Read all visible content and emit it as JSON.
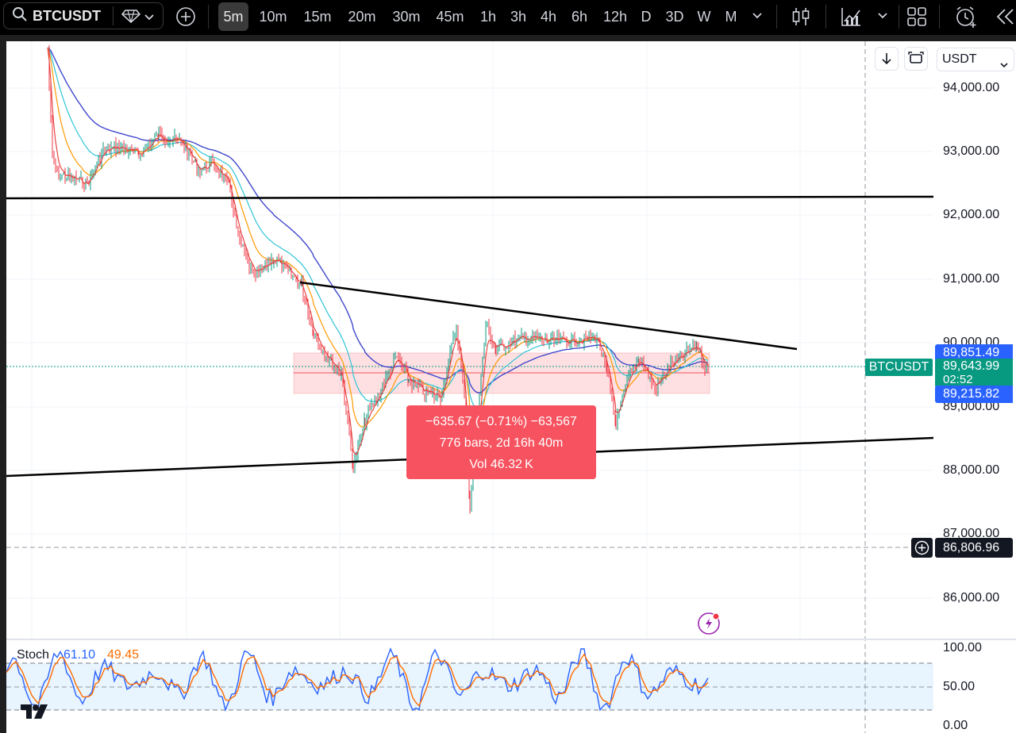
{
  "toolbar": {
    "symbol": "BTCUSDT",
    "timeframes": [
      "5m",
      "10m",
      "15m",
      "20m",
      "30m",
      "45m",
      "1h",
      "3h",
      "4h",
      "6h",
      "12h",
      "D",
      "3D",
      "W",
      "M"
    ],
    "active_timeframe": "5m"
  },
  "chart": {
    "currency": "USDT",
    "price_axis": [
      "94,000.00",
      "93,000.00",
      "92,000.00",
      "91,000.00",
      "90,000.00",
      "89,000.00",
      "88,000.00",
      "87,000.00",
      "86,000.00"
    ],
    "symbol_tag": "BTCUSDT",
    "price_tags": {
      "upper": "89,851.49",
      "last": "89,643.99",
      "countdown": "02:52",
      "lower": "89,215.82",
      "crosshair": "86,806.96"
    },
    "measure": {
      "change": "−635.67 (−0.71%) −63,567",
      "bars": "776 bars, 2d 16h 40m",
      "volume": "Vol 46.32 K"
    }
  },
  "stoch": {
    "name": "Stoch",
    "k": "61.10",
    "d": "49.45",
    "axis": [
      "100.00",
      "50.00",
      "0.00"
    ]
  },
  "colors": {
    "measure_box": "#f7525f",
    "tag_blue": "#2962ff",
    "tag_green": "#089981",
    "stoch_k": "#2962ff",
    "stoch_d": "#ff6d00"
  },
  "icons": [
    "search-icon",
    "diamond-icon",
    "chevron-down-icon",
    "plus-circle-icon",
    "candles-icon",
    "line-chart-icon",
    "layout-grid-icon",
    "alert-clock-icon",
    "rewind-icon",
    "arrow-down-icon",
    "auto-scale-icon",
    "crosshair-plus-icon",
    "lightning-icon",
    "tradingview-logo"
  ]
}
